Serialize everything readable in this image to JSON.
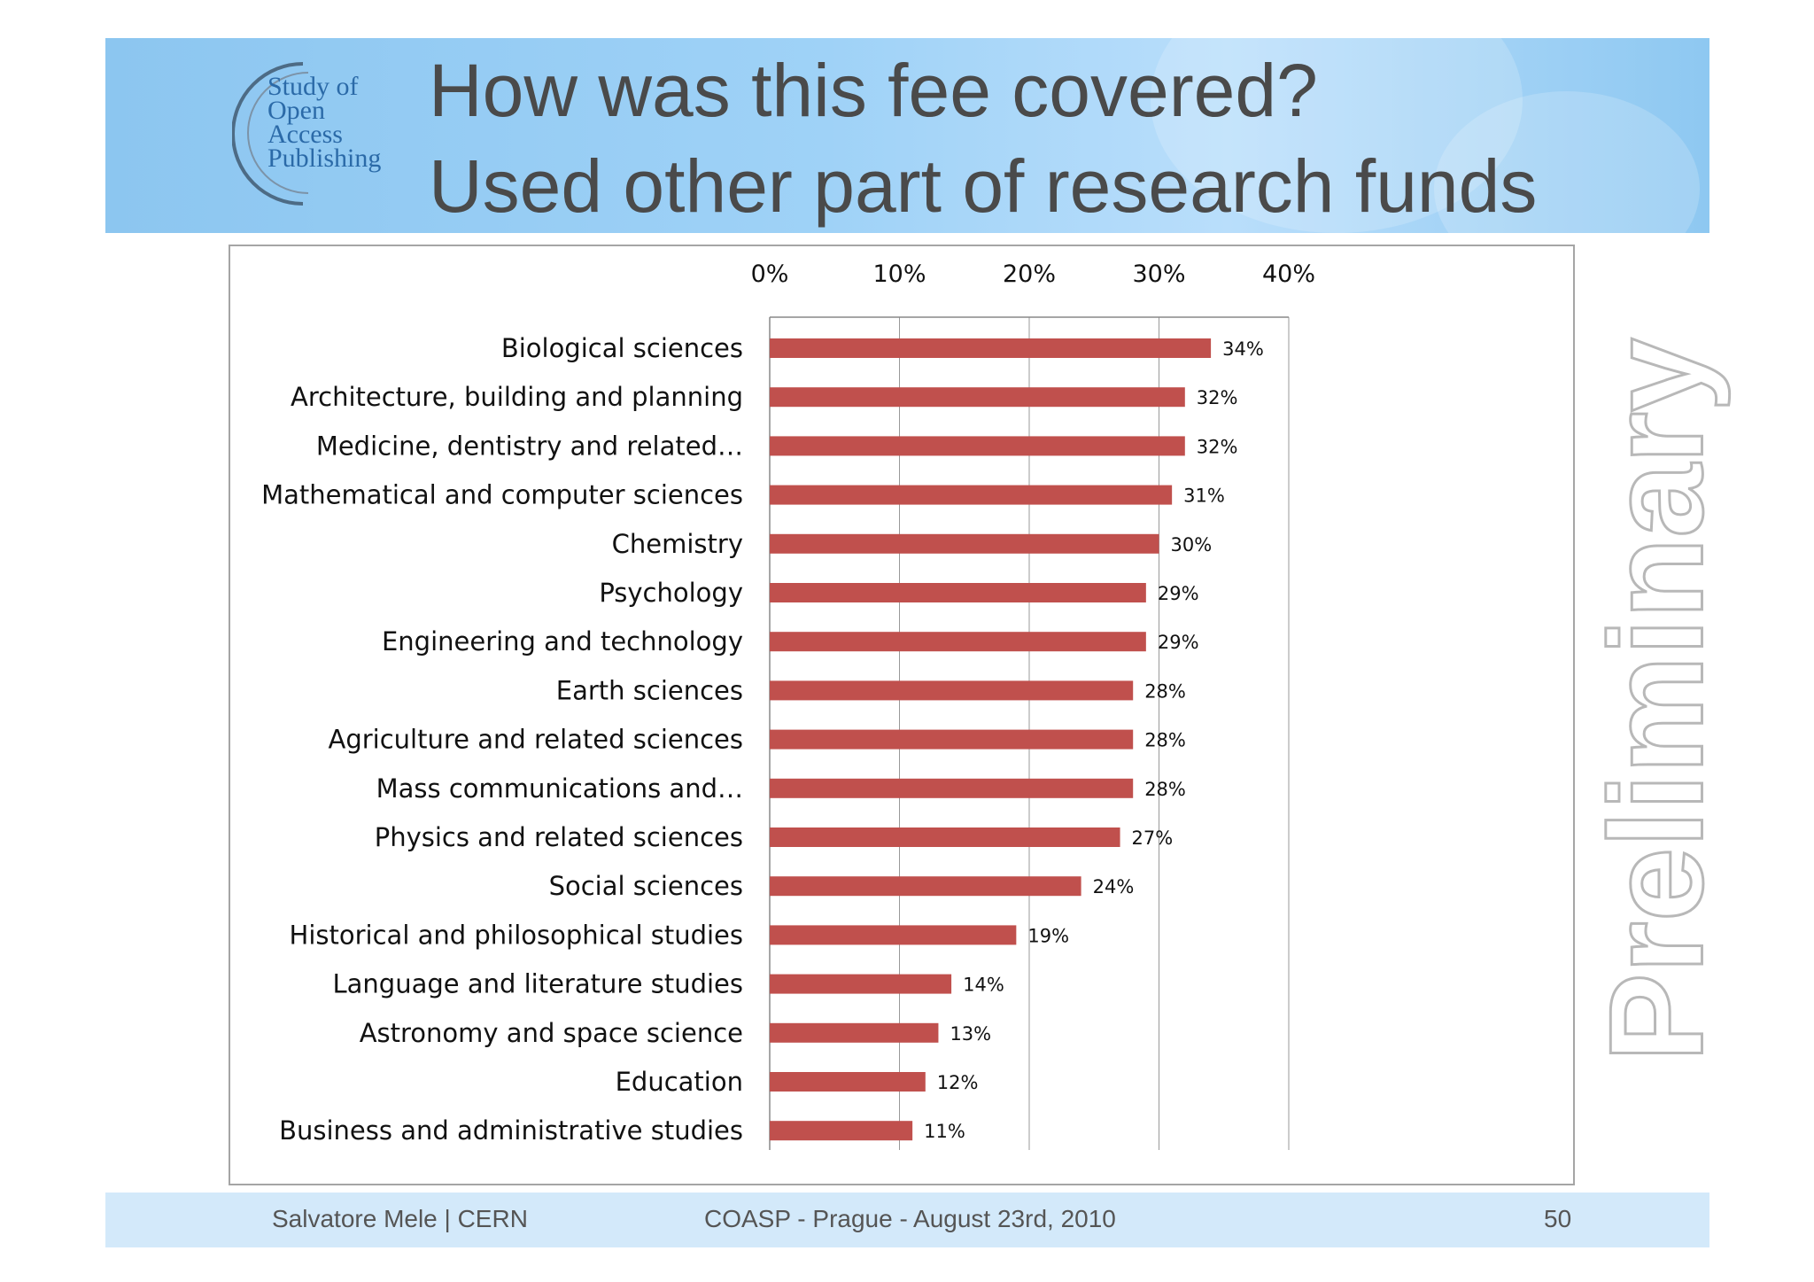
{
  "header": {
    "title_line1": "How was this fee covered?",
    "title_line2": "Used other part of research funds",
    "logo_lines": [
      "Study of",
      "Open",
      "Access",
      "Publishing"
    ]
  },
  "watermark": "Preliminary",
  "footer": {
    "author": "Salvatore Mele | CERN",
    "event": "COASP - Prague - August 23rd, 2010",
    "page_number": "50"
  },
  "colors": {
    "bar": "#c0504d",
    "header_bg": "#9fd2f7",
    "footer_bg": "#d3e9fa",
    "title_text": "#4a4a4a"
  },
  "chart_data": {
    "type": "bar",
    "orientation": "horizontal",
    "axis_position": "top",
    "xlim": [
      0,
      40
    ],
    "x_ticks": [
      "0%",
      "10%",
      "20%",
      "30%",
      "40%"
    ],
    "grid": true,
    "categories": [
      "Biological sciences",
      "Architecture, building and planning",
      "Medicine, dentistry and related…",
      "Mathematical and computer sciences",
      "Chemistry",
      "Psychology",
      "Engineering and technology",
      "Earth sciences",
      "Agriculture and related sciences",
      "Mass communications and…",
      "Physics and related sciences",
      "Social sciences",
      "Historical and philosophical studies",
      "Language and literature studies",
      "Astronomy and space science",
      "Education",
      "Business and administrative studies"
    ],
    "values": [
      34,
      32,
      32,
      31,
      30,
      29,
      29,
      28,
      28,
      28,
      27,
      24,
      19,
      14,
      13,
      12,
      11
    ],
    "data_labels": [
      "34%",
      "32%",
      "32%",
      "31%",
      "30%",
      "29%",
      "29%",
      "28%",
      "28%",
      "28%",
      "27%",
      "24%",
      "19%",
      "14%",
      "13%",
      "12%",
      "11%"
    ]
  }
}
